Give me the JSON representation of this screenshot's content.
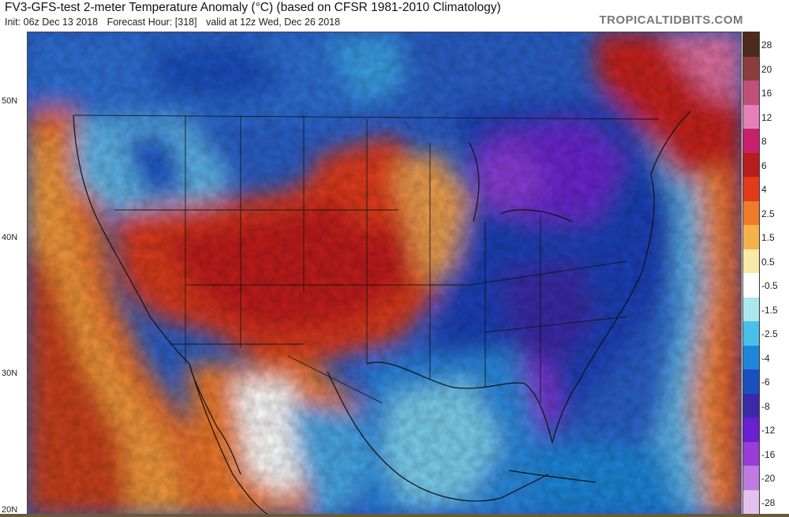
{
  "header": {
    "title": "FV3-GFS-test 2-meter Temperature Anomaly (°C) (based on CFSR 1981-2010 Climatology)",
    "init": "Init: 06z Dec 13 2018",
    "forecast_hour": "Forecast Hour: [318]",
    "valid": "valid at 12z Wed, Dec 26 2018",
    "brand": "TROPICALTIDBITS.COM"
  },
  "map": {
    "latitude_labels": [
      "50N",
      "40N",
      "30N",
      "20N"
    ]
  },
  "colorbar": {
    "labels": [
      "28",
      "20",
      "16",
      "12",
      "8",
      "6",
      "4",
      "2.5",
      "1.5",
      "0.5",
      "-0.5",
      "-1.5",
      "-2.5",
      "-4",
      "-6",
      "-8",
      "-12",
      "-16",
      "-20",
      "-28"
    ],
    "colors": [
      "#4e2a1e",
      "#8a3d3a",
      "#c0507a",
      "#e47fb8",
      "#c8206a",
      "#b81d1d",
      "#e23a1a",
      "#f07a2a",
      "#f6b24a",
      "#fbe9a8",
      "#ffffff",
      "#a8e8ee",
      "#48c0e8",
      "#1e86d8",
      "#1b4fc0",
      "#3a2aa8",
      "#6a1fd0",
      "#9a3cd8",
      "#c07ae0",
      "#e4c0ee"
    ]
  }
}
